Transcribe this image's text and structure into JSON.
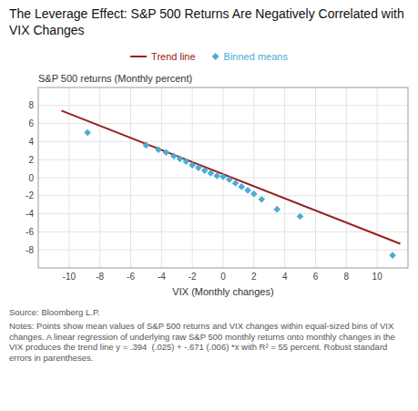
{
  "chart_data": {
    "type": "scatter",
    "title": "The Leverage Effect: S&P 500 Returns Are Negatively Correlated with VIX Changes",
    "x_label": "VIX (Monthly changes)",
    "y_label": "S&P 500 returns (Monthly percent)",
    "source": "Source: Bloomberg L.P.",
    "note": "Notes: Points show mean values of S&P 500 returns and VIX changes within equal-sized bins of VIX changes. A linear regression of underlying raw S&P 500 monthly returns onto monthly changes in the VIX produces the trend line y = .394  (.025) + -.671 (.006) *x with R² = 55 percent. Robust standard errors in parentheses.",
    "series": [
      {
        "name": "Trend line",
        "type": "line",
        "line_style": "solid",
        "color": "#9B2020",
        "x": [
          -10.5,
          11.5
        ],
        "values": [
          7.4395,
          -7.3225
        ]
      },
      {
        "name": "Binned means",
        "type": "scatter",
        "marker": "diamond",
        "color": "#4BACD4",
        "x": [
          -8.8,
          -5.0,
          -4.2,
          -3.7,
          -3.2,
          -2.8,
          -2.4,
          -2.0,
          -1.6,
          -1.2,
          -0.8,
          -0.4,
          0.0,
          0.4,
          0.8,
          1.2,
          1.6,
          2.0,
          2.5,
          3.5,
          5.0,
          11.0
        ],
        "values": [
          5.0,
          3.6,
          3.1,
          2.8,
          2.4,
          2.1,
          1.8,
          1.4,
          1.1,
          0.8,
          0.5,
          0.2,
          0.1,
          -0.2,
          -0.6,
          -1.0,
          -1.4,
          -1.8,
          -2.4,
          -3.5,
          -4.3,
          -8.6
        ]
      }
    ],
    "xlim": [
      -12,
      12
    ],
    "ylim": [
      -10,
      10
    ],
    "xticks": [
      -10,
      -8,
      -6,
      -4,
      -2,
      0,
      2,
      4,
      6,
      8,
      10
    ],
    "yticks": [
      -8,
      -6,
      -4,
      -2,
      0,
      2,
      4,
      6,
      8
    ],
    "grid": true,
    "legend": "top"
  }
}
